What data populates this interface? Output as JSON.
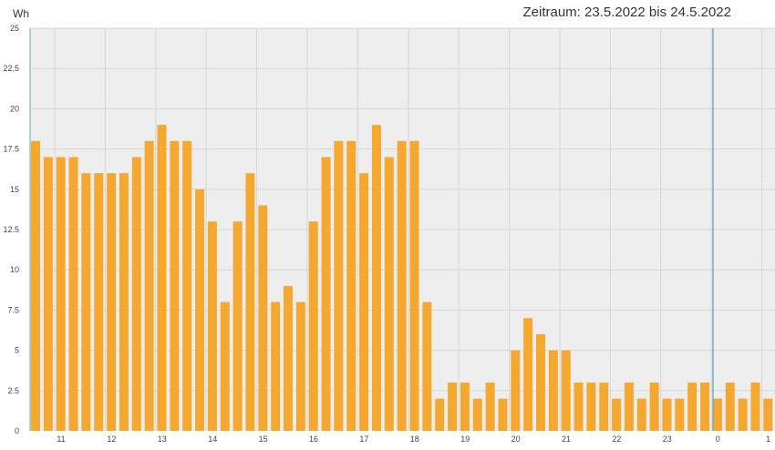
{
  "header": {
    "unit": "Wh",
    "title": "Zeitraum: 23.5.2022 bis 24.5.2022"
  },
  "chart_data": {
    "type": "bar",
    "title": "Zeitraum: 23.5.2022 bis 24.5.2022",
    "ylabel": "Wh",
    "xlabel": "",
    "ylim": [
      0,
      25
    ],
    "y_ticks": [
      "0",
      "2.5",
      "5",
      "7.5",
      "10",
      "12.5",
      "15",
      "17.5",
      "20",
      "22.5",
      "25"
    ],
    "x_tick_labels": [
      "11",
      "12",
      "13",
      "14",
      "15",
      "16",
      "17",
      "18",
      "19",
      "20",
      "21",
      "22",
      "23",
      "0",
      "1"
    ],
    "interval": "15 min",
    "grid": true,
    "colors": {
      "bar": "#f5a82f",
      "plot_bg": "#eeeeee",
      "grid": "#d6d6d6",
      "day_divider": "#5a9bc9",
      "axis": "#5fa9a9"
    },
    "values": [
      18,
      17,
      17,
      17,
      16,
      16,
      16,
      16,
      17,
      18,
      19,
      18,
      18,
      15,
      13,
      8,
      13,
      16,
      14,
      8,
      9,
      8,
      13,
      17,
      18,
      18,
      16,
      19,
      17,
      18,
      18,
      8,
      2,
      3,
      3,
      2,
      3,
      2,
      5,
      7,
      6,
      5,
      5,
      3,
      3,
      3,
      2,
      3,
      2,
      3,
      2,
      2,
      3,
      3,
      2,
      3,
      2,
      3,
      2
    ]
  }
}
